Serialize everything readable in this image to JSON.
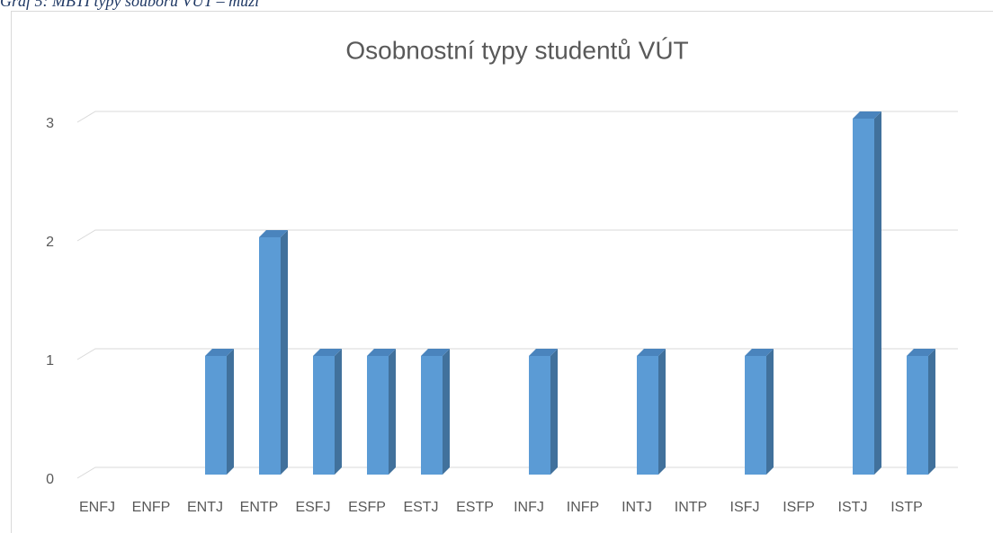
{
  "caption": "Graf 5: MBTI typy souboru VUT – muži",
  "chart_data": {
    "type": "bar",
    "title": "Osobnostní typy studentů VÚT",
    "categories": [
      "ENFJ",
      "ENFP",
      "ENTJ",
      "ENTP",
      "ESFJ",
      "ESFP",
      "ESTJ",
      "ESTP",
      "INFJ",
      "INFP",
      "INTJ",
      "INTP",
      "ISFJ",
      "ISFP",
      "ISTJ",
      "ISTP"
    ],
    "values": [
      0,
      0,
      1,
      2,
      1,
      1,
      1,
      0,
      1,
      0,
      1,
      0,
      1,
      0,
      3,
      1
    ],
    "color": "#5b9bd5",
    "ylim": [
      0,
      3
    ],
    "yticks": [
      0,
      1,
      2,
      3
    ],
    "grid": true
  }
}
